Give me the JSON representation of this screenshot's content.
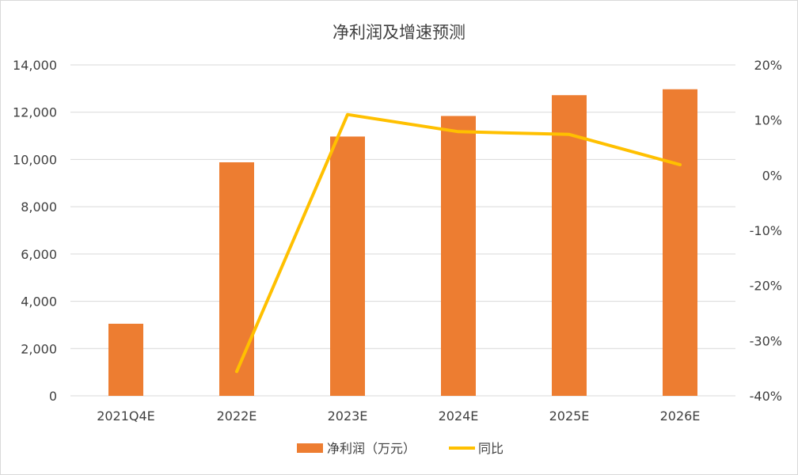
{
  "chart_data": {
    "type": "bar",
    "title": "净利润及增速预测",
    "categories": [
      "2021Q4E",
      "2022E",
      "2023E",
      "2024E",
      "2025E",
      "2026E"
    ],
    "series": [
      {
        "name": "净利润（万元）",
        "type": "bar",
        "axis": "left",
        "color": "#ED7D31",
        "values": [
          3050,
          9880,
          10970,
          11840,
          12720,
          12970
        ]
      },
      {
        "name": "同比",
        "type": "line",
        "axis": "right",
        "color": "#FFC000",
        "values": [
          null,
          -35.6,
          11.0,
          7.9,
          7.4,
          1.9
        ]
      }
    ],
    "ylim": [
      0,
      14000
    ],
    "y_ticks": [
      "0",
      "2,000",
      "4,000",
      "6,000",
      "8,000",
      "10,000",
      "12,000",
      "14,000"
    ],
    "y2lim": [
      -40,
      20
    ],
    "y2_ticks": [
      "-40%",
      "-30%",
      "-20%",
      "-10%",
      "0%",
      "10%",
      "20%"
    ],
    "grid": true,
    "legend_position": "bottom"
  }
}
